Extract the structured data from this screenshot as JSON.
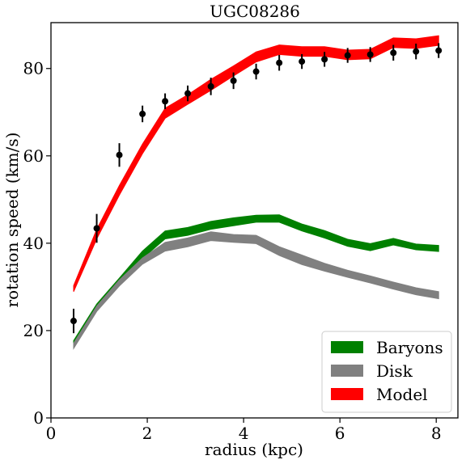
{
  "chart_data": {
    "type": "line",
    "title": "UGC08286",
    "xlabel": "radius (kpc)",
    "ylabel": "rotation speed (km/s)",
    "xlim": [
      0,
      8.45
    ],
    "ylim": [
      0,
      90.5
    ],
    "xticks": [
      0,
      2,
      4,
      6,
      8
    ],
    "yticks": [
      0,
      20,
      40,
      60,
      80
    ],
    "grid": false,
    "legend_position": "lower-right",
    "x": [
      0.47,
      0.95,
      1.42,
      1.9,
      2.37,
      2.84,
      3.32,
      3.79,
      4.26,
      4.74,
      5.21,
      5.68,
      6.16,
      6.63,
      7.11,
      7.58,
      8.05
    ],
    "series": [
      {
        "name": "Baryons",
        "color": "#008000",
        "kind": "band",
        "lower": [
          16.5,
          25.0,
          30.8,
          36.5,
          41.0,
          41.8,
          43.2,
          44.0,
          44.8,
          44.8,
          42.8,
          41.2,
          39.3,
          38.3,
          39.6,
          38.5,
          38.1
        ],
        "upper": [
          17.7,
          26.1,
          32.0,
          38.2,
          42.8,
          43.6,
          45.0,
          45.8,
          46.4,
          46.5,
          44.4,
          42.9,
          40.9,
          39.9,
          41.1,
          39.8,
          39.5
        ]
      },
      {
        "name": "Disk",
        "color": "#808080",
        "kind": "band",
        "lower": [
          15.9,
          24.4,
          30.2,
          35.2,
          38.2,
          39.2,
          40.6,
          40.2,
          39.9,
          37.2,
          35.1,
          33.6,
          32.2,
          30.9,
          29.5,
          28.2,
          27.3
        ],
        "upper": [
          17.1,
          25.6,
          31.6,
          36.6,
          40.2,
          41.2,
          42.6,
          42.0,
          41.8,
          39.2,
          37.3,
          35.4,
          33.8,
          32.5,
          31.1,
          29.8,
          28.9
        ]
      },
      {
        "name": "Model",
        "color": "#ff0000",
        "kind": "band",
        "lower": [
          28.9,
          41.0,
          51.0,
          60.5,
          68.6,
          71.8,
          75.0,
          78.3,
          81.5,
          83.2,
          82.8,
          82.8,
          82.0,
          82.2,
          84.8,
          84.6,
          85.3
        ],
        "upper": [
          30.3,
          43.2,
          53.2,
          62.7,
          70.9,
          74.0,
          77.5,
          80.6,
          83.8,
          85.4,
          85.0,
          85.0,
          84.2,
          84.4,
          87.0,
          86.8,
          87.5
        ]
      },
      {
        "name": "",
        "color": "#000000",
        "kind": "points",
        "values": [
          22.2,
          43.4,
          60.2,
          69.6,
          72.5,
          74.3,
          75.9,
          77.2,
          79.3,
          81.3,
          81.6,
          82.1,
          83.0,
          83.2,
          83.6,
          83.9,
          84.1
        ],
        "errors": [
          2.8,
          3.3,
          2.7,
          1.9,
          1.8,
          1.8,
          2.0,
          1.9,
          1.8,
          1.8,
          1.7,
          1.7,
          1.7,
          1.7,
          1.8,
          1.8,
          1.7
        ]
      }
    ]
  }
}
